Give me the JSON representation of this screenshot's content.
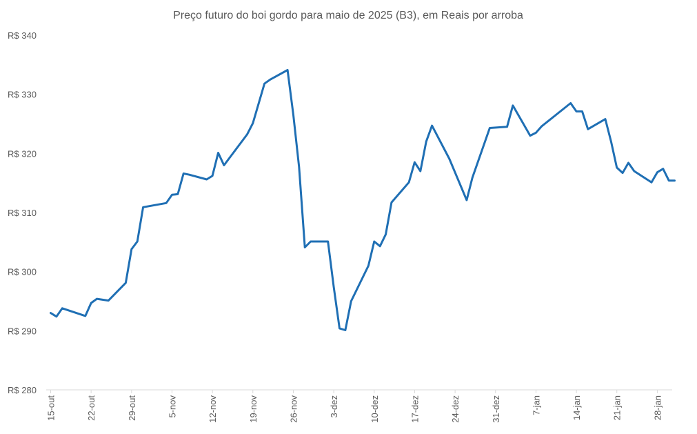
{
  "chart_data": {
    "type": "line",
    "title": "Preço futuro do boi gordo para maio de 2025 (B3), em Reais por arroba",
    "xlabel": "",
    "ylabel": "",
    "ylim": [
      280,
      340
    ],
    "y_ticks": [
      {
        "value": 340,
        "label": "R$ 340"
      },
      {
        "value": 330,
        "label": "R$ 330"
      },
      {
        "value": 320,
        "label": "R$ 320"
      },
      {
        "value": 310,
        "label": "R$ 310"
      },
      {
        "value": 300,
        "label": "R$ 300"
      },
      {
        "value": 290,
        "label": "R$ 290"
      },
      {
        "value": 280,
        "label": "R$ 280"
      }
    ],
    "x_ticks": [
      "15-out",
      "22-out",
      "29-out",
      "5-nov",
      "12-nov",
      "19-nov",
      "26-nov",
      "3-dez",
      "10-dez",
      "17-dez",
      "24-dez",
      "31-dez",
      "7-jan",
      "14-jan",
      "21-jan",
      "28-jan"
    ],
    "grid": false,
    "series_color": "#1f6fb4",
    "series": [
      {
        "dates": [
          "2024-10-15",
          "2024-10-16",
          "2024-10-17",
          "2024-10-21",
          "2024-10-22",
          "2024-10-23",
          "2024-10-25",
          "2024-10-28",
          "2024-10-29",
          "2024-10-30",
          "2024-10-31",
          "2024-11-04",
          "2024-11-05",
          "2024-11-06",
          "2024-11-07",
          "2024-11-08",
          "2024-11-11",
          "2024-11-12",
          "2024-11-13",
          "2024-11-14",
          "2024-11-18",
          "2024-11-19",
          "2024-11-21",
          "2024-11-22",
          "2024-11-25",
          "2024-11-26",
          "2024-11-27",
          "2024-11-28",
          "2024-11-29",
          "2024-12-02",
          "2024-12-03",
          "2024-12-04",
          "2024-12-05",
          "2024-12-06",
          "2024-12-09",
          "2024-12-10",
          "2024-12-11",
          "2024-12-12",
          "2024-12-13",
          "2024-12-16",
          "2024-12-17",
          "2024-12-18",
          "2024-12-19",
          "2024-12-20",
          "2024-12-23",
          "2024-12-26",
          "2024-12-27",
          "2024-12-30",
          "2025-01-02",
          "2025-01-03",
          "2025-01-06",
          "2025-01-07",
          "2025-01-08",
          "2025-01-13",
          "2025-01-14",
          "2025-01-15",
          "2025-01-16",
          "2025-01-19",
          "2025-01-20",
          "2025-01-21",
          "2025-01-22",
          "2025-01-23",
          "2025-01-24",
          "2025-01-27",
          "2025-01-28",
          "2025-01-29",
          "2025-01-30",
          "2025-01-31"
        ],
        "values": [
          293.0,
          292.4,
          293.8,
          292.5,
          294.7,
          295.4,
          295.1,
          298.1,
          303.8,
          305.1,
          310.9,
          311.6,
          313.0,
          313.1,
          316.6,
          316.4,
          315.6,
          316.2,
          320.1,
          318.0,
          323.2,
          325.1,
          331.8,
          332.5,
          334.1,
          326.5,
          317.7,
          304.1,
          305.1,
          305.1,
          297.4,
          290.4,
          290.1,
          295.0,
          301.0,
          305.1,
          304.3,
          306.3,
          311.7,
          315.1,
          318.5,
          317.0,
          322.0,
          324.7,
          319.1,
          312.1,
          315.9,
          324.3,
          324.5,
          328.1,
          323.0,
          323.5,
          324.6,
          328.5,
          327.1,
          327.1,
          324.1,
          325.8,
          322.0,
          317.6,
          316.7,
          318.4,
          317.0,
          315.1,
          316.8,
          317.4,
          315.4,
          315.4
        ]
      }
    ]
  }
}
